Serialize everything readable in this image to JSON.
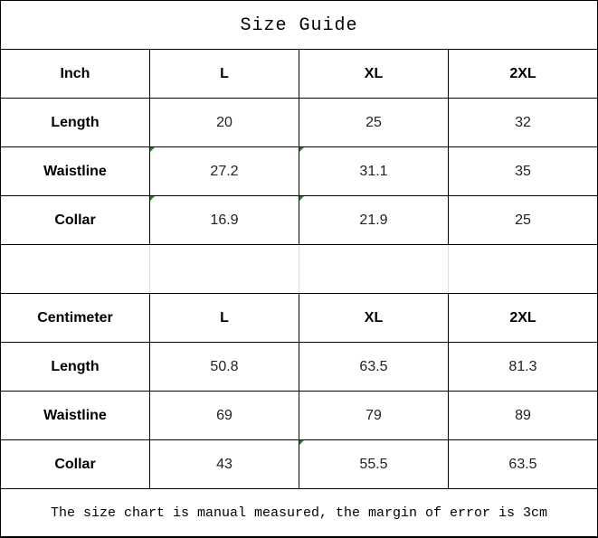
{
  "title": "Size Guide",
  "inch": {
    "header": [
      "Inch",
      "L",
      "XL",
      "2XL"
    ],
    "rows": [
      [
        "Length",
        "20",
        "25",
        "32"
      ],
      [
        "Waistline",
        "27.2",
        "31.1",
        "35"
      ],
      [
        "Collar",
        "16.9",
        "21.9",
        "25"
      ]
    ]
  },
  "centimeter": {
    "header": [
      "Centimeter",
      "L",
      "XL",
      "2XL"
    ],
    "rows": [
      [
        "Length",
        "50.8",
        "63.5",
        "81.3"
      ],
      [
        "Waistline",
        "69",
        "79",
        "89"
      ],
      [
        "Collar",
        "43",
        "55.5",
        "63.5"
      ]
    ]
  },
  "footer": "The size chart is manual measured, the margin of error is 3cm",
  "colors": {
    "error_marker": "#1a8a1a",
    "border": "#000000"
  }
}
